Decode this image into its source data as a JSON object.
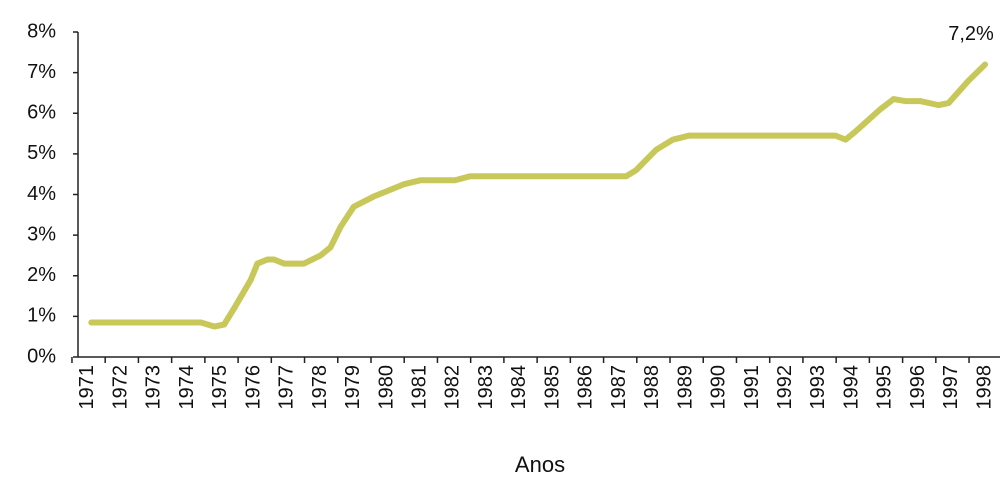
{
  "chart_data": {
    "type": "line",
    "x_label": "Anos",
    "annotation": "7,2%",
    "x": [
      1971.1,
      1974.4,
      1974.8,
      1975.1,
      1975.4,
      1975.9,
      1976.1,
      1976.4,
      1976.6,
      1976.9,
      1977.5,
      1978.0,
      1978.3,
      1978.6,
      1979.0,
      1979.6,
      1979.9,
      1980.5,
      1981.0,
      1982.05,
      1982.5,
      1987.2,
      1987.5,
      1988.1,
      1988.6,
      1989.1,
      1993.5,
      1993.8,
      1994.1,
      1994.85,
      1995.25,
      1995.6,
      1996.05,
      1996.6,
      1996.9,
      1997.5,
      1998.0
    ],
    "series": [
      {
        "color": "#c8c85a",
        "values": [
          0.85,
          0.85,
          0.75,
          0.8,
          1.2,
          1.9,
          2.3,
          2.4,
          2.4,
          2.3,
          2.3,
          2.5,
          2.7,
          3.2,
          3.7,
          3.95,
          4.05,
          4.25,
          4.35,
          4.35,
          4.45,
          4.45,
          4.6,
          5.1,
          5.35,
          5.45,
          5.45,
          5.35,
          5.55,
          6.1,
          6.35,
          6.3,
          6.3,
          6.2,
          6.25,
          6.8,
          7.2
        ]
      }
    ],
    "xlim": [
      1970.7,
      1998.45
    ],
    "xticks": [
      1971,
      1972,
      1973,
      1974,
      1975,
      1976,
      1977,
      1978,
      1979,
      1980,
      1981,
      1982,
      1983,
      1984,
      1985,
      1986,
      1987,
      1988,
      1989,
      1990,
      1991,
      1992,
      1993,
      1994,
      1995,
      1996,
      1997,
      1998
    ],
    "ylim": [
      0,
      8
    ],
    "yticks": [
      {
        "value": 0,
        "label": "0%"
      },
      {
        "value": 1,
        "label": "1%"
      },
      {
        "value": 2,
        "label": "2%"
      },
      {
        "value": 3,
        "label": "3%"
      },
      {
        "value": 4,
        "label": "4%"
      },
      {
        "value": 5,
        "label": "5%"
      },
      {
        "value": 6,
        "label": "6%"
      },
      {
        "value": 7,
        "label": "7%"
      },
      {
        "value": 8,
        "label": "8%"
      }
    ],
    "grid": false
  }
}
